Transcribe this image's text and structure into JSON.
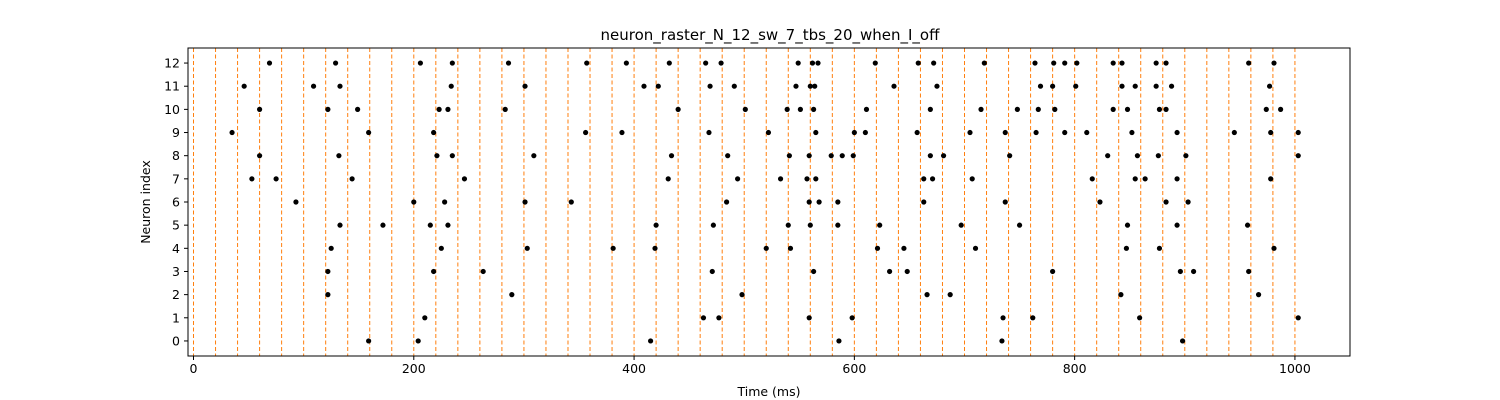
{
  "chart_data": {
    "type": "scatter",
    "title": "neuron_raster_N_12_sw_7_tbs_20_when_I_off",
    "xlabel": "Time (ms)",
    "ylabel": "Neuron index",
    "xlim": [
      -5,
      1050
    ],
    "ylim": [
      -0.65,
      12.65
    ],
    "xticks": [
      0,
      200,
      400,
      600,
      800,
      1000
    ],
    "yticks": [
      0,
      1,
      2,
      3,
      4,
      5,
      6,
      7,
      8,
      9,
      10,
      11,
      12
    ],
    "grid": false,
    "vlines": {
      "color": "#ff7f0e",
      "style": "dashed",
      "positions": [
        0,
        20,
        40,
        60,
        80,
        100,
        120,
        140,
        160,
        180,
        200,
        220,
        240,
        260,
        280,
        300,
        320,
        340,
        360,
        380,
        400,
        420,
        440,
        460,
        480,
        500,
        520,
        540,
        560,
        580,
        600,
        620,
        640,
        660,
        680,
        700,
        720,
        740,
        760,
        780,
        800,
        820,
        840,
        860,
        880,
        900,
        920,
        940,
        960,
        980,
        1000
      ]
    },
    "marker_color": "#000000",
    "series": [
      {
        "neuron": 12,
        "spike_times": [
          69,
          129,
          206,
          235,
          286,
          357,
          393,
          432,
          465,
          479,
          549,
          562,
          567,
          619,
          658,
          672,
          718,
          764,
          781,
          791,
          802,
          835,
          843,
          874,
          883,
          958,
          981
        ]
      },
      {
        "neuron": 11,
        "spike_times": [
          46,
          109,
          133,
          234,
          301,
          409,
          422,
          469,
          491,
          547,
          560,
          564,
          636,
          675,
          769,
          780,
          801,
          843,
          855,
          874,
          888,
          977
        ]
      },
      {
        "neuron": 10,
        "spike_times": [
          60,
          122,
          149,
          223,
          231,
          283,
          440,
          501,
          539,
          551,
          563,
          611,
          669,
          715,
          748,
          767,
          782,
          835,
          848,
          877,
          883,
          974,
          987
        ]
      },
      {
        "neuron": 9,
        "spike_times": [
          35,
          159,
          218,
          356,
          389,
          468,
          522,
          565,
          600,
          610,
          657,
          705,
          737,
          765,
          791,
          811,
          852,
          893,
          945,
          978,
          1003
        ]
      },
      {
        "neuron": 8,
        "spike_times": [
          60,
          132,
          221,
          235,
          309,
          434,
          485,
          541,
          559,
          579,
          589,
          599,
          669,
          681,
          741,
          830,
          857,
          876,
          901,
          1003
        ]
      },
      {
        "neuron": 7,
        "spike_times": [
          53,
          75,
          144,
          246,
          431,
          494,
          533,
          557,
          565,
          663,
          671,
          707,
          816,
          855,
          864,
          893,
          978
        ]
      },
      {
        "neuron": 6,
        "spike_times": [
          93,
          200,
          228,
          301,
          343,
          484,
          559,
          568,
          585,
          663,
          737,
          823,
          883,
          903
        ]
      },
      {
        "neuron": 5,
        "spike_times": [
          133,
          172,
          215,
          231,
          420,
          472,
          540,
          560,
          585,
          623,
          697,
          750,
          848,
          893,
          957
        ]
      },
      {
        "neuron": 4,
        "spike_times": [
          125,
          225,
          303,
          381,
          419,
          520,
          542,
          621,
          645,
          710,
          847,
          877,
          981
        ]
      },
      {
        "neuron": 3,
        "spike_times": [
          122,
          218,
          263,
          471,
          563,
          632,
          648,
          780,
          896,
          908,
          958
        ]
      },
      {
        "neuron": 2,
        "spike_times": [
          122,
          289,
          498,
          666,
          687,
          842,
          967
        ]
      },
      {
        "neuron": 1,
        "spike_times": [
          210,
          463,
          477,
          559,
          598,
          735,
          762,
          859,
          1003
        ]
      },
      {
        "neuron": 0,
        "spike_times": [
          159,
          204,
          415,
          586,
          734,
          898
        ]
      }
    ]
  }
}
